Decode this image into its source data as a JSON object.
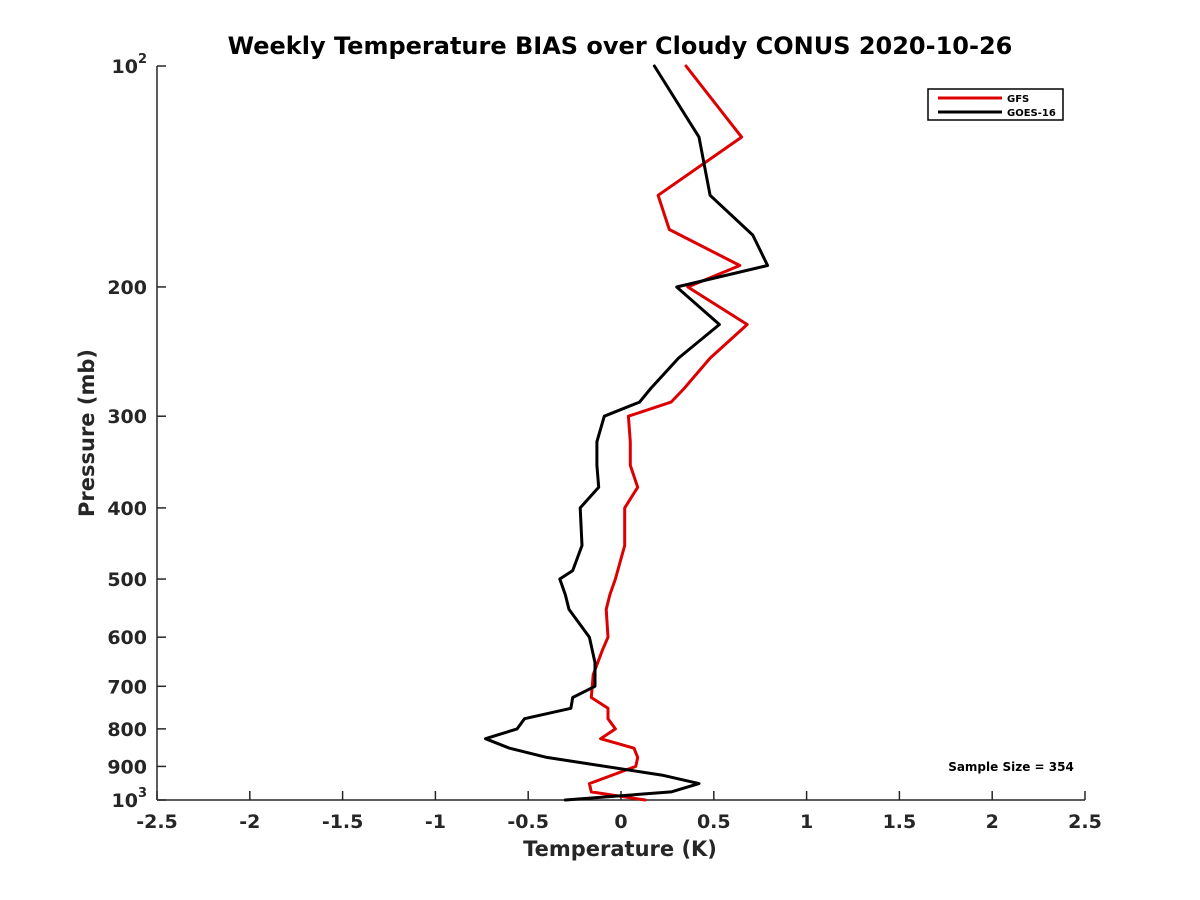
{
  "chart_data": {
    "type": "line",
    "title": "Weekly Temperature BIAS over Cloudy CONUS 2020-10-26",
    "xlabel": "Temperature (K)",
    "ylabel": "Pressure (mb)",
    "xlim": [
      -2.5,
      2.5
    ],
    "ylim": [
      1000,
      100
    ],
    "yscale": "log",
    "grid": false,
    "legend_position": "top-right",
    "x_ticks": [
      {
        "value": -2.5,
        "label": "-2.5"
      },
      {
        "value": -2,
        "label": "-2"
      },
      {
        "value": -1.5,
        "label": "-1.5"
      },
      {
        "value": -1,
        "label": "-1"
      },
      {
        "value": -0.5,
        "label": "-0.5"
      },
      {
        "value": 0,
        "label": "0"
      },
      {
        "value": 0.5,
        "label": "0.5"
      },
      {
        "value": 1,
        "label": "1"
      },
      {
        "value": 1.5,
        "label": "1.5"
      },
      {
        "value": 2,
        "label": "2"
      },
      {
        "value": 2.5,
        "label": "2.5"
      }
    ],
    "y_ticks": [
      {
        "value": 100,
        "label": "10",
        "exp": "2"
      },
      {
        "value": 200,
        "label": "200"
      },
      {
        "value": 300,
        "label": "300"
      },
      {
        "value": 400,
        "label": "400"
      },
      {
        "value": 500,
        "label": "500"
      },
      {
        "value": 600,
        "label": "600"
      },
      {
        "value": 700,
        "label": "700"
      },
      {
        "value": 800,
        "label": "800"
      },
      {
        "value": 900,
        "label": "900"
      },
      {
        "value": 1000,
        "label": "10",
        "exp": "3"
      }
    ],
    "series": [
      {
        "name": "GFS",
        "color": "#dd0000",
        "points": [
          {
            "x": 0.35,
            "y": 100
          },
          {
            "x": 0.65,
            "y": 125
          },
          {
            "x": 0.2,
            "y": 150
          },
          {
            "x": 0.26,
            "y": 167
          },
          {
            "x": 0.64,
            "y": 187
          },
          {
            "x": 0.36,
            "y": 200
          },
          {
            "x": 0.68,
            "y": 225
          },
          {
            "x": 0.48,
            "y": 250
          },
          {
            "x": 0.34,
            "y": 275
          },
          {
            "x": 0.27,
            "y": 287
          },
          {
            "x": 0.04,
            "y": 300
          },
          {
            "x": 0.05,
            "y": 325
          },
          {
            "x": 0.05,
            "y": 350
          },
          {
            "x": 0.09,
            "y": 375
          },
          {
            "x": 0.02,
            "y": 400
          },
          {
            "x": 0.02,
            "y": 450
          },
          {
            "x": -0.03,
            "y": 500
          },
          {
            "x": -0.06,
            "y": 525
          },
          {
            "x": -0.08,
            "y": 550
          },
          {
            "x": -0.07,
            "y": 600
          },
          {
            "x": -0.1,
            "y": 625
          },
          {
            "x": -0.15,
            "y": 675
          },
          {
            "x": -0.16,
            "y": 725
          },
          {
            "x": -0.07,
            "y": 750
          },
          {
            "x": -0.07,
            "y": 775
          },
          {
            "x": -0.03,
            "y": 800
          },
          {
            "x": -0.11,
            "y": 825
          },
          {
            "x": 0.07,
            "y": 850
          },
          {
            "x": 0.09,
            "y": 875
          },
          {
            "x": 0.08,
            "y": 900
          },
          {
            "x": -0.17,
            "y": 950
          },
          {
            "x": -0.16,
            "y": 975
          },
          {
            "x": 0.13,
            "y": 1000
          }
        ]
      },
      {
        "name": "GOES-16",
        "color": "#000000",
        "points": [
          {
            "x": 0.18,
            "y": 100
          },
          {
            "x": 0.42,
            "y": 125
          },
          {
            "x": 0.48,
            "y": 150
          },
          {
            "x": 0.71,
            "y": 170
          },
          {
            "x": 0.79,
            "y": 187
          },
          {
            "x": 0.3,
            "y": 200
          },
          {
            "x": 0.53,
            "y": 225
          },
          {
            "x": 0.31,
            "y": 250
          },
          {
            "x": 0.16,
            "y": 275
          },
          {
            "x": 0.1,
            "y": 287
          },
          {
            "x": -0.09,
            "y": 300
          },
          {
            "x": -0.13,
            "y": 325
          },
          {
            "x": -0.13,
            "y": 350
          },
          {
            "x": -0.12,
            "y": 375
          },
          {
            "x": -0.22,
            "y": 400
          },
          {
            "x": -0.21,
            "y": 450
          },
          {
            "x": -0.26,
            "y": 487
          },
          {
            "x": -0.33,
            "y": 500
          },
          {
            "x": -0.3,
            "y": 525
          },
          {
            "x": -0.28,
            "y": 550
          },
          {
            "x": -0.17,
            "y": 600
          },
          {
            "x": -0.14,
            "y": 650
          },
          {
            "x": -0.14,
            "y": 700
          },
          {
            "x": -0.26,
            "y": 725
          },
          {
            "x": -0.27,
            "y": 750
          },
          {
            "x": -0.52,
            "y": 775
          },
          {
            "x": -0.56,
            "y": 800
          },
          {
            "x": -0.73,
            "y": 825
          },
          {
            "x": -0.6,
            "y": 850
          },
          {
            "x": -0.4,
            "y": 875
          },
          {
            "x": 0.22,
            "y": 925
          },
          {
            "x": 0.42,
            "y": 950
          },
          {
            "x": 0.27,
            "y": 975
          },
          {
            "x": -0.3,
            "y": 1000
          }
        ]
      }
    ],
    "annotation": "Sample Size = 354"
  }
}
